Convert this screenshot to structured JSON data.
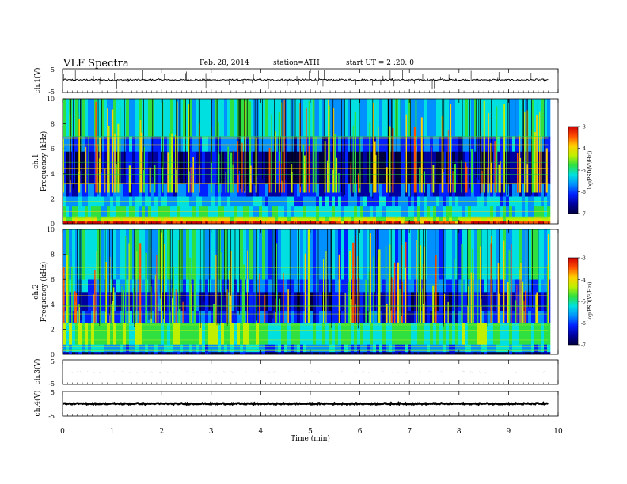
{
  "header": {
    "title": "VLF  Spectra",
    "date": "Feb. 28, 2014",
    "station": "station=ATH",
    "start": "start  UT  =   2  :20: 0"
  },
  "colors": {
    "colormap": [
      "#000040",
      "#0000a0",
      "#0020ff",
      "#0090ff",
      "#00e0e0",
      "#30e040",
      "#c0f000",
      "#ffd000",
      "#ff5000",
      "#d00000",
      "#ffffff"
    ]
  },
  "chart_data": [
    {
      "type": "line",
      "channel": "ch.1",
      "ylabel": "ch.1(V)",
      "ylim": [
        -5,
        5
      ],
      "yticks": [
        "5",
        "-5"
      ],
      "baseline": 0.3,
      "noise": 0.35,
      "spikes": 55
    },
    {
      "type": "heatmap",
      "channel": "ch.1",
      "ylabel_channel": "ch.1",
      "ylabel": "Frequency  (kHz)",
      "ylim": [
        0,
        10
      ],
      "yticks": [
        "0",
        "2",
        "4",
        "6",
        "8",
        "10"
      ],
      "colorbar_label": "log(PSD(V²/Hz))",
      "colorbar_range": [
        -7,
        -3
      ],
      "colorbar_ticks": [
        "-3",
        "-4",
        "-5",
        "-6",
        "-7"
      ],
      "bands": [
        {
          "from": 0.0,
          "to": 0.2,
          "level": -3.2
        },
        {
          "from": 0.2,
          "to": 0.6,
          "level": -4.3
        },
        {
          "from": 0.6,
          "to": 1.4,
          "level": -5.2
        },
        {
          "from": 1.4,
          "to": 2.2,
          "level": -5.6
        },
        {
          "from": 2.2,
          "to": 3.2,
          "level": -6.1
        },
        {
          "from": 3.2,
          "to": 5.8,
          "level": -6.6
        },
        {
          "from": 5.8,
          "to": 7.0,
          "level": -5.9
        },
        {
          "from": 7.0,
          "to": 10.0,
          "level": -5.3
        }
      ]
    },
    {
      "type": "heatmap",
      "channel": "ch.2",
      "ylabel_channel": "ch.2",
      "ylabel": "Frequency  (kHz)",
      "ylim": [
        0,
        10
      ],
      "yticks": [
        "0",
        "2",
        "4",
        "6",
        "8",
        "10"
      ],
      "colorbar_label": "log(PSD(V²/Hz))",
      "colorbar_range": [
        -7,
        -3
      ],
      "colorbar_ticks": [
        "-3",
        "-4",
        "-5",
        "-6",
        "-7"
      ],
      "bands": [
        {
          "from": 0.0,
          "to": 0.2,
          "level": -6.8
        },
        {
          "from": 0.2,
          "to": 0.8,
          "level": -5.6
        },
        {
          "from": 0.8,
          "to": 2.5,
          "level": -4.9
        },
        {
          "from": 2.5,
          "to": 3.5,
          "level": -6.0
        },
        {
          "from": 3.5,
          "to": 5.0,
          "level": -6.4
        },
        {
          "from": 5.0,
          "to": 6.0,
          "level": -5.8
        },
        {
          "from": 6.0,
          "to": 10.0,
          "level": -5.4
        }
      ]
    },
    {
      "type": "line",
      "channel": "ch.3",
      "ylabel": "ch.3(V)",
      "ylim": [
        -5,
        5
      ],
      "yticks": [
        "5",
        "-5"
      ],
      "baseline": 0.0,
      "noise": 0.05,
      "spikes": 0
    },
    {
      "type": "line",
      "channel": "ch.4",
      "ylabel": "ch.4(V)",
      "ylim": [
        -5,
        5
      ],
      "yticks": [
        "5",
        "-5"
      ],
      "baseline": 0.0,
      "noise": 0.25,
      "spikes": 0
    }
  ],
  "x_axis": {
    "label": "Time  (min)",
    "xlim": [
      0,
      10
    ],
    "data_end": 9.8,
    "ticks": [
      "0",
      "1",
      "2",
      "3",
      "4",
      "5",
      "6",
      "7",
      "8",
      "9",
      "10"
    ]
  }
}
